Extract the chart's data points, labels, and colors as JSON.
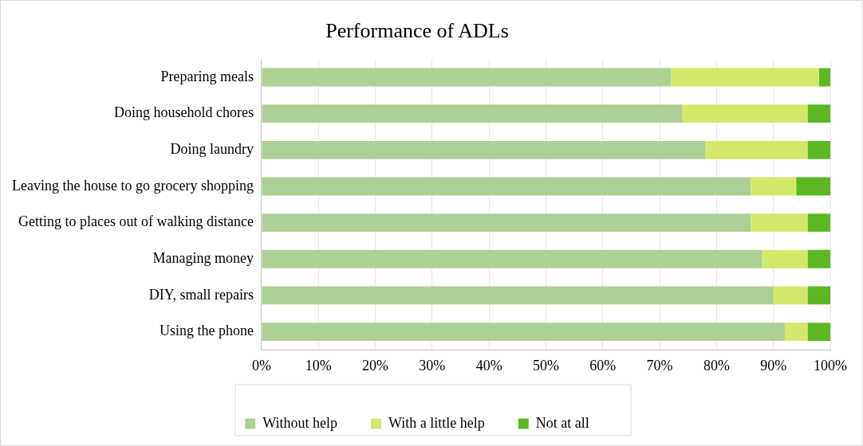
{
  "chart_data": {
    "type": "bar",
    "orientation": "horizontal",
    "stacked": true,
    "title": "Performance of ADLs",
    "categories": [
      "Preparing meals",
      "Doing household chores",
      "Doing laundry",
      "Leaving the house to go grocery shopping",
      "Getting to places out of walking distance",
      "Managing money",
      "DIY, small repairs",
      "Using the phone"
    ],
    "series": [
      {
        "name": "Without help",
        "color": "#aed094",
        "values": [
          72,
          74,
          78,
          86,
          86,
          88,
          90,
          92
        ]
      },
      {
        "name": "With a little help",
        "color": "#d4e96b",
        "values": [
          26,
          22,
          18,
          8,
          10,
          8,
          6,
          4
        ]
      },
      {
        "name": "Not at all",
        "color": "#5cb822",
        "values": [
          2,
          4,
          4,
          6,
          4,
          4,
          4,
          4
        ]
      }
    ],
    "xlim": [
      0,
      100
    ],
    "xticks": [
      {
        "value": 0,
        "label": "0%"
      },
      {
        "value": 10,
        "label": "10%"
      },
      {
        "value": 20,
        "label": "20%"
      },
      {
        "value": 30,
        "label": "30%"
      },
      {
        "value": 40,
        "label": "40%"
      },
      {
        "value": 50,
        "label": "50%"
      },
      {
        "value": 60,
        "label": "60%"
      },
      {
        "value": 70,
        "label": "70%"
      },
      {
        "value": 80,
        "label": "80%"
      },
      {
        "value": 90,
        "label": "90%"
      },
      {
        "value": 100,
        "label": "100%"
      }
    ],
    "grid": "x",
    "legend": "bottom"
  }
}
